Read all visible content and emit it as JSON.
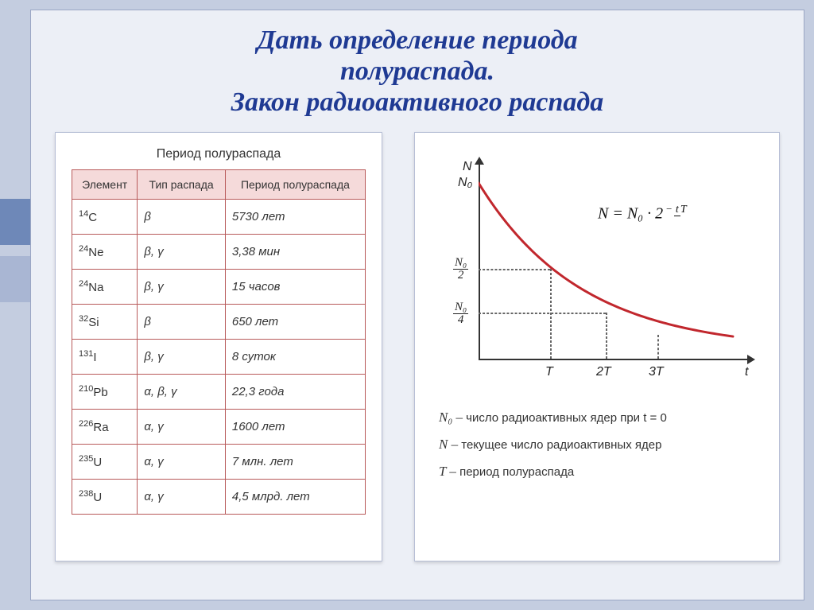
{
  "title_line1": "Дать определение периода",
  "title_line2": "полураспада.",
  "title_line3": "Закон радиоактивного распада",
  "table": {
    "caption": "Период полураспада",
    "headers": [
      "Элемент",
      "Тип распада",
      "Период полураспада"
    ],
    "rows": [
      {
        "mass": "14",
        "sym": "C",
        "type": "β",
        "half": "5730 лет"
      },
      {
        "mass": "24",
        "sym": "Ne",
        "type": "β, γ",
        "half": "3,38 мин"
      },
      {
        "mass": "24",
        "sym": "Na",
        "type": "β, γ",
        "half": "15 часов"
      },
      {
        "mass": "32",
        "sym": "Si",
        "type": "β",
        "half": "650 лет"
      },
      {
        "mass": "131",
        "sym": "I",
        "type": "β, γ",
        "half": "8 суток"
      },
      {
        "mass": "210",
        "sym": "Pb",
        "type": "α, β, γ",
        "half": "22,3 года"
      },
      {
        "mass": "226",
        "sym": "Ra",
        "type": "α, γ",
        "half": "1600 лет"
      },
      {
        "mass": "235",
        "sym": "U",
        "type": "α, γ",
        "half": "7 млн. лет"
      },
      {
        "mass": "238",
        "sym": "U",
        "type": "α, γ",
        "half": "4,5 млрд. лет"
      }
    ]
  },
  "chart": {
    "type": "line",
    "curve_color": "#c1272d",
    "curve_width": 3,
    "axis_color": "#333333",
    "background_color": "#ffffff",
    "y_label_top": "N",
    "y_label_N0": "N₀",
    "y_label_half": {
      "num": "N₀",
      "den": "2"
    },
    "y_label_quarter": {
      "num": "N₀",
      "den": "4"
    },
    "x_ticks": [
      "T",
      "2T",
      "3T"
    ],
    "x_axis_label": "t",
    "formula_text": "N = N₀ · 2",
    "formula_exp_num": "t",
    "formula_exp_den": "T",
    "formula_exp_sign": "−",
    "curve_points": [
      {
        "t": 0,
        "N": 1.0
      },
      {
        "t": 1,
        "N": 0.5
      },
      {
        "t": 2,
        "N": 0.25
      },
      {
        "t": 3,
        "N": 0.125
      }
    ],
    "grid_positions_x": [
      90,
      160,
      225
    ],
    "grid_positions_y": [
      35,
      143,
      198
    ]
  },
  "legend": {
    "N0": "число радиоактивных ядер при t = 0",
    "N": "текущее число радиоактивных ядер",
    "T": "период полураспада",
    "sym_N0": "N₀ –",
    "sym_N": "N –",
    "sym_T": "T –"
  },
  "colors": {
    "page_bg": "#c4cde0",
    "slide_bg": "#eceff6",
    "sidebar1": "#6e88b8",
    "sidebar2": "#a9b6d3",
    "title_color": "#1f3a93",
    "th_bg": "#f5dada",
    "border": "#b85a5a"
  }
}
